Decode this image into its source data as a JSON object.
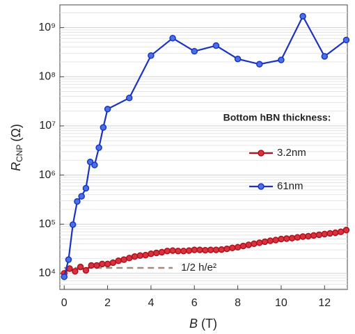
{
  "chart_data": {
    "type": "line",
    "xlabel": {
      "symbol": "B",
      "unit": "(T)"
    },
    "ylabel": {
      "symbol": "R",
      "subscript": "CNP",
      "unit": "(Ω)"
    },
    "xlim": [
      -0.2,
      13.05
    ],
    "xticks": [
      0,
      2,
      4,
      6,
      8,
      10,
      12
    ],
    "ylim": [
      4700,
      2900000000
    ],
    "log_y": true,
    "yticks": [
      {
        "value": 10000,
        "label": "10⁴"
      },
      {
        "value": 100000,
        "label": "10⁵"
      },
      {
        "value": 1000000,
        "label": "10⁶"
      },
      {
        "value": 10000000,
        "label": "10⁷"
      },
      {
        "value": 100000000,
        "label": "10⁸"
      },
      {
        "value": 1000000000,
        "label": "10⁹"
      }
    ],
    "grid": true,
    "legend": {
      "title": "Bottom hBN thickness:",
      "position": "right"
    },
    "reference": {
      "label": "1/2 h/e²",
      "value": 12900,
      "x": [
        0,
        5
      ],
      "color": "#a08a7c"
    },
    "series": [
      {
        "name": "3.2nm",
        "color": "#b0101e",
        "marker_color": "#d8323c",
        "x": [
          0,
          0.25,
          0.5,
          0.75,
          1,
          1.25,
          1.5,
          1.75,
          2,
          2.25,
          2.5,
          2.75,
          3,
          3.25,
          3.5,
          3.75,
          4,
          4.25,
          4.5,
          4.75,
          5,
          5.25,
          5.5,
          5.75,
          6,
          6.25,
          6.5,
          6.75,
          7,
          7.25,
          7.5,
          7.75,
          8,
          8.25,
          8.5,
          8.75,
          9,
          9.25,
          9.5,
          9.75,
          10,
          10.25,
          10.5,
          10.75,
          11,
          11.25,
          11.5,
          11.75,
          12,
          12.25,
          12.5,
          12.75,
          13
        ],
        "values": [
          10000,
          12500,
          11000,
          13500,
          11500,
          14500,
          14500,
          15500,
          15500,
          16500,
          18000,
          19000,
          20500,
          22000,
          23000,
          23500,
          25000,
          26000,
          27000,
          28500,
          29000,
          28500,
          28500,
          29000,
          30000,
          30000,
          29500,
          30000,
          30000,
          30500,
          31500,
          33000,
          34000,
          36000,
          38000,
          40000,
          42000,
          44000,
          46000,
          47500,
          50000,
          51000,
          52000,
          54000,
          56000,
          57000,
          59000,
          61000,
          63000,
          65000,
          67000,
          70000,
          76000
        ]
      },
      {
        "name": "61nm",
        "color": "#1a33c0",
        "marker_color": "#4a72e8",
        "x": [
          0,
          0.2,
          0.4,
          0.6,
          0.8,
          1,
          1.2,
          1.4,
          1.6,
          1.8,
          2,
          3,
          4,
          5,
          6,
          7,
          8,
          9,
          10,
          11,
          12,
          13
        ],
        "values": [
          8500,
          19000,
          98000,
          290000,
          370000,
          540000,
          1850000,
          1600000,
          3600000,
          9300000,
          22000000,
          37000000,
          270000000,
          610000000,
          330000000,
          430000000,
          230000000,
          180000000,
          220000000,
          1700000000,
          260000000,
          560000000
        ]
      }
    ]
  }
}
